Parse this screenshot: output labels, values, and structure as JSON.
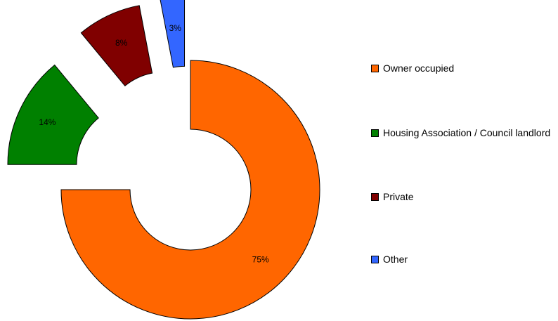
{
  "chart_data": {
    "type": "pie",
    "style": "exploded-donut",
    "series": [
      {
        "name": "Owner occupied",
        "value": 75,
        "label": "75%",
        "color": "#ff6600"
      },
      {
        "name": "Housing Association / Council landlord",
        "value": 14,
        "label": "14%",
        "color": "#008000"
      },
      {
        "name": "Private",
        "value": 8,
        "label": "8%",
        "color": "#800000"
      },
      {
        "name": "Other",
        "value": 3,
        "label": "3%",
        "color": "#3366ff"
      }
    ],
    "legend_position": "right"
  }
}
